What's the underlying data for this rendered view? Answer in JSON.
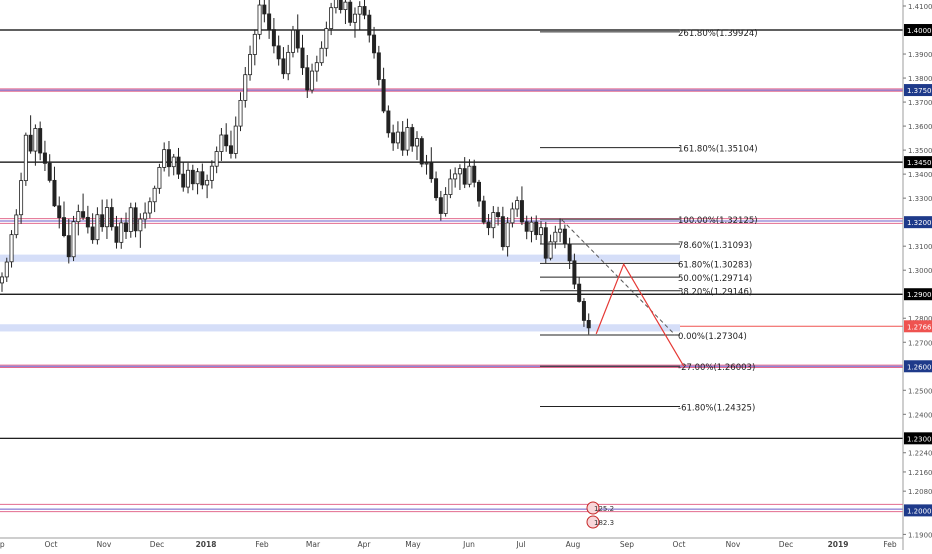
{
  "chart_data": {
    "type": "candlestick",
    "instrument_hint": "GBPUSD",
    "y_axis": {
      "min": 1.1885,
      "max": 1.4125,
      "tick_labels": [
        "1.41000",
        "1.39000",
        "1.38000",
        "1.37000",
        "1.36000",
        "1.35000",
        "1.34000",
        "1.33000",
        "1.31000",
        "1.30000",
        "1.28000",
        "1.27000",
        "1.25000",
        "1.24000",
        "1.22400",
        "1.21600",
        "1.20800",
        "1.19000"
      ],
      "tick_values": [
        1.41,
        1.39,
        1.38,
        1.37,
        1.36,
        1.35,
        1.34,
        1.33,
        1.31,
        1.3,
        1.28,
        1.27,
        1.25,
        1.24,
        1.224,
        1.216,
        1.208,
        1.19
      ]
    },
    "x_axis": {
      "labels": [
        "ep",
        "Oct",
        "Nov",
        "Dec",
        "2018",
        "Feb",
        "Mar",
        "Apr",
        "May",
        "Jun",
        "Jul",
        "Aug",
        "Sep",
        "Oct",
        "Nov",
        "Dec",
        "2019",
        "Feb"
      ],
      "bold": [
        "2018",
        "2019"
      ]
    },
    "level_labels": [
      {
        "value": 1.4,
        "text": "1.40000"
      },
      {
        "value": 1.375,
        "text": "1.37500"
      },
      {
        "value": 1.345,
        "text": "1.34500"
      },
      {
        "value": 1.32,
        "text": "1.32000"
      },
      {
        "value": 1.29,
        "text": "1.29000"
      },
      {
        "value": 1.27665,
        "text": "1.27665"
      },
      {
        "value": 1.26,
        "text": "1.26000"
      },
      {
        "value": 1.23,
        "text": "1.23000"
      },
      {
        "value": 1.2,
        "text": "1.20000"
      }
    ],
    "fib_levels": [
      {
        "label": "261.80%(1.39924)",
        "value": 1.39924
      },
      {
        "label": "161.80%(1.35104)",
        "value": 1.35104
      },
      {
        "label": "100.00%(1.32125)",
        "value": 1.32125
      },
      {
        "label": "78.60%(1.31093)",
        "value": 1.31093
      },
      {
        "label": "61.80%(1.30283)",
        "value": 1.30283
      },
      {
        "label": "50.00%(1.29714)",
        "value": 1.29714
      },
      {
        "label": "38.20%(1.29146)",
        "value": 1.29146
      },
      {
        "label": "0.00%(1.27304)",
        "value": 1.27304
      },
      {
        "label": "-27.00%(1.26003)",
        "value": 1.26003
      },
      {
        "label": "-61.80%(1.24325)",
        "value": 1.24325
      }
    ],
    "horizontal_levels": [
      1.4,
      1.345,
      1.29,
      1.23
    ],
    "pink_lines": [
      1.3755,
      1.3745,
      1.3215,
      1.3195,
      1.2605,
      1.2595,
      1.2025,
      1.1995
    ],
    "zones": [
      {
        "low": 1.3035,
        "high": 1.3065
      },
      {
        "low": 1.2745,
        "high": 1.2775
      }
    ],
    "projection_path": [
      {
        "date": "2018-08-14",
        "price": 1.2735
      },
      {
        "date": "2018-08-30",
        "price": 1.3025
      },
      {
        "date": "2018-10-04",
        "price": 1.26
      }
    ],
    "trend_line": [
      {
        "date": "2018-07-25",
        "price": 1.321
      },
      {
        "date": "2018-09-29",
        "price": 1.273
      }
    ],
    "event_markers": [
      "125.2",
      "182.3"
    ],
    "candles": [
      {
        "t": 0,
        "o": 1.2947,
        "h": 1.2991,
        "l": 1.291,
        "c": 1.2972
      },
      {
        "t": 1,
        "o": 1.2972,
        "h": 1.3052,
        "l": 1.2951,
        "c": 1.3034
      },
      {
        "t": 2,
        "o": 1.3035,
        "h": 1.3167,
        "l": 1.3011,
        "c": 1.3148
      },
      {
        "t": 3,
        "o": 1.3148,
        "h": 1.3254,
        "l": 1.3133,
        "c": 1.323
      },
      {
        "t": 4,
        "o": 1.3231,
        "h": 1.3406,
        "l": 1.3193,
        "c": 1.3373
      },
      {
        "t": 5,
        "o": 1.3373,
        "h": 1.3573,
        "l": 1.3351,
        "c": 1.3562
      },
      {
        "t": 6,
        "o": 1.3562,
        "h": 1.3645,
        "l": 1.3485,
        "c": 1.3496
      },
      {
        "t": 7,
        "o": 1.3496,
        "h": 1.3607,
        "l": 1.3435,
        "c": 1.359
      },
      {
        "t": 8,
        "o": 1.359,
        "h": 1.3619,
        "l": 1.3458,
        "c": 1.3488
      },
      {
        "t": 9,
        "o": 1.3488,
        "h": 1.3539,
        "l": 1.3413,
        "c": 1.3445
      },
      {
        "t": 10,
        "o": 1.3445,
        "h": 1.3483,
        "l": 1.3365,
        "c": 1.3374
      },
      {
        "t": 11,
        "o": 1.3374,
        "h": 1.3431,
        "l": 1.3263,
        "c": 1.3268
      },
      {
        "t": 12,
        "o": 1.3268,
        "h": 1.3307,
        "l": 1.3174,
        "c": 1.3219
      },
      {
        "t": 13,
        "o": 1.3219,
        "h": 1.3286,
        "l": 1.3137,
        "c": 1.3144
      },
      {
        "t": 14,
        "o": 1.3144,
        "h": 1.3214,
        "l": 1.3028,
        "c": 1.3056
      },
      {
        "t": 15,
        "o": 1.3056,
        "h": 1.3226,
        "l": 1.3038,
        "c": 1.3202
      },
      {
        "t": 16,
        "o": 1.3202,
        "h": 1.3273,
        "l": 1.3145,
        "c": 1.3244
      },
      {
        "t": 17,
        "o": 1.3244,
        "h": 1.3319,
        "l": 1.3209,
        "c": 1.322
      },
      {
        "t": 18,
        "o": 1.322,
        "h": 1.3268,
        "l": 1.3153,
        "c": 1.318
      },
      {
        "t": 19,
        "o": 1.318,
        "h": 1.3237,
        "l": 1.311,
        "c": 1.3127
      },
      {
        "t": 20,
        "o": 1.3127,
        "h": 1.3262,
        "l": 1.3107,
        "c": 1.3231
      },
      {
        "t": 21,
        "o": 1.3231,
        "h": 1.3294,
        "l": 1.316,
        "c": 1.3181
      },
      {
        "t": 22,
        "o": 1.3181,
        "h": 1.3295,
        "l": 1.313,
        "c": 1.3261
      },
      {
        "t": 23,
        "o": 1.3261,
        "h": 1.3298,
        "l": 1.3165,
        "c": 1.3181
      },
      {
        "t": 24,
        "o": 1.3181,
        "h": 1.3226,
        "l": 1.309,
        "c": 1.3116
      },
      {
        "t": 25,
        "o": 1.3116,
        "h": 1.3218,
        "l": 1.3089,
        "c": 1.3197
      },
      {
        "t": 26,
        "o": 1.3197,
        "h": 1.324,
        "l": 1.313,
        "c": 1.3161
      },
      {
        "t": 27,
        "o": 1.3161,
        "h": 1.3281,
        "l": 1.3135,
        "c": 1.326
      },
      {
        "t": 28,
        "o": 1.326,
        "h": 1.3282,
        "l": 1.3137,
        "c": 1.3164
      },
      {
        "t": 29,
        "o": 1.3164,
        "h": 1.3237,
        "l": 1.3093,
        "c": 1.3213
      },
      {
        "t": 30,
        "o": 1.3213,
        "h": 1.3282,
        "l": 1.3174,
        "c": 1.3238
      },
      {
        "t": 31,
        "o": 1.3238,
        "h": 1.3303,
        "l": 1.3216,
        "c": 1.3285
      },
      {
        "t": 32,
        "o": 1.3285,
        "h": 1.3352,
        "l": 1.3242,
        "c": 1.3341
      },
      {
        "t": 33,
        "o": 1.3341,
        "h": 1.3443,
        "l": 1.3318,
        "c": 1.3428
      },
      {
        "t": 34,
        "o": 1.3428,
        "h": 1.3532,
        "l": 1.3411,
        "c": 1.3502
      },
      {
        "t": 35,
        "o": 1.3502,
        "h": 1.3538,
        "l": 1.339,
        "c": 1.3431
      },
      {
        "t": 36,
        "o": 1.3431,
        "h": 1.3484,
        "l": 1.3395,
        "c": 1.3471
      },
      {
        "t": 37,
        "o": 1.3471,
        "h": 1.3509,
        "l": 1.338,
        "c": 1.34
      },
      {
        "t": 38,
        "o": 1.34,
        "h": 1.3451,
        "l": 1.3327,
        "c": 1.3346
      },
      {
        "t": 39,
        "o": 1.3346,
        "h": 1.3446,
        "l": 1.332,
        "c": 1.3416
      },
      {
        "t": 40,
        "o": 1.3416,
        "h": 1.3439,
        "l": 1.3333,
        "c": 1.336
      },
      {
        "t": 41,
        "o": 1.336,
        "h": 1.3425,
        "l": 1.3316,
        "c": 1.341
      },
      {
        "t": 42,
        "o": 1.341,
        "h": 1.3444,
        "l": 1.3337,
        "c": 1.3355
      },
      {
        "t": 43,
        "o": 1.3355,
        "h": 1.3398,
        "l": 1.33,
        "c": 1.3374
      },
      {
        "t": 44,
        "o": 1.3374,
        "h": 1.3458,
        "l": 1.334,
        "c": 1.3433
      },
      {
        "t": 45,
        "o": 1.3433,
        "h": 1.3515,
        "l": 1.3404,
        "c": 1.3494
      },
      {
        "t": 46,
        "o": 1.3494,
        "h": 1.3592,
        "l": 1.3455,
        "c": 1.3563
      },
      {
        "t": 47,
        "o": 1.3563,
        "h": 1.3612,
        "l": 1.3493,
        "c": 1.3518
      },
      {
        "t": 48,
        "o": 1.3518,
        "h": 1.3581,
        "l": 1.3465,
        "c": 1.3486
      },
      {
        "t": 49,
        "o": 1.3486,
        "h": 1.364,
        "l": 1.3465,
        "c": 1.36
      },
      {
        "t": 50,
        "o": 1.36,
        "h": 1.3741,
        "l": 1.3579,
        "c": 1.3707
      },
      {
        "t": 51,
        "o": 1.3707,
        "h": 1.3846,
        "l": 1.3677,
        "c": 1.3814
      },
      {
        "t": 52,
        "o": 1.3814,
        "h": 1.3935,
        "l": 1.3789,
        "c": 1.3898
      },
      {
        "t": 53,
        "o": 1.3898,
        "h": 1.4003,
        "l": 1.3853,
        "c": 1.3982
      },
      {
        "t": 54,
        "o": 1.3982,
        "h": 1.4146,
        "l": 1.3961,
        "c": 1.4104
      },
      {
        "t": 55,
        "o": 1.4104,
        "h": 1.417,
        "l": 1.4032,
        "c": 1.4067
      },
      {
        "t": 56,
        "o": 1.4067,
        "h": 1.4138,
        "l": 1.3963,
        "c": 1.4002
      },
      {
        "t": 57,
        "o": 1.4002,
        "h": 1.405,
        "l": 1.3903,
        "c": 1.3934
      },
      {
        "t": 58,
        "o": 1.3934,
        "h": 1.3977,
        "l": 1.3852,
        "c": 1.388
      },
      {
        "t": 59,
        "o": 1.388,
        "h": 1.3929,
        "l": 1.3797,
        "c": 1.3818
      },
      {
        "t": 60,
        "o": 1.3818,
        "h": 1.3938,
        "l": 1.3791,
        "c": 1.3907
      },
      {
        "t": 61,
        "o": 1.3907,
        "h": 1.4017,
        "l": 1.3886,
        "c": 1.3999
      },
      {
        "t": 62,
        "o": 1.3999,
        "h": 1.4065,
        "l": 1.3906,
        "c": 1.3925
      },
      {
        "t": 63,
        "o": 1.3925,
        "h": 1.398,
        "l": 1.3813,
        "c": 1.3843
      },
      {
        "t": 64,
        "o": 1.3843,
        "h": 1.3896,
        "l": 1.3717,
        "c": 1.375
      },
      {
        "t": 65,
        "o": 1.375,
        "h": 1.386,
        "l": 1.3736,
        "c": 1.3829
      },
      {
        "t": 66,
        "o": 1.3829,
        "h": 1.3893,
        "l": 1.3785,
        "c": 1.3864
      },
      {
        "t": 67,
        "o": 1.3864,
        "h": 1.3953,
        "l": 1.3851,
        "c": 1.3924
      },
      {
        "t": 68,
        "o": 1.3924,
        "h": 1.4035,
        "l": 1.389,
        "c": 1.4006
      },
      {
        "t": 69,
        "o": 1.4006,
        "h": 1.4113,
        "l": 1.3979,
        "c": 1.4093
      },
      {
        "t": 70,
        "o": 1.4093,
        "h": 1.4175,
        "l": 1.4069,
        "c": 1.4141
      },
      {
        "t": 71,
        "o": 1.4141,
        "h": 1.4188,
        "l": 1.4069,
        "c": 1.4085
      },
      {
        "t": 72,
        "o": 1.4085,
        "h": 1.4148,
        "l": 1.4025,
        "c": 1.4116
      },
      {
        "t": 73,
        "o": 1.4116,
        "h": 1.4179,
        "l": 1.4017,
        "c": 1.4032
      },
      {
        "t": 74,
        "o": 1.4032,
        "h": 1.4094,
        "l": 1.3968,
        "c": 1.4066
      },
      {
        "t": 75,
        "o": 1.4066,
        "h": 1.412,
        "l": 1.4001,
        "c": 1.4098
      },
      {
        "t": 76,
        "o": 1.4098,
        "h": 1.4159,
        "l": 1.4045,
        "c": 1.4062
      },
      {
        "t": 77,
        "o": 1.4062,
        "h": 1.4084,
        "l": 1.3948,
        "c": 1.3979
      },
      {
        "t": 78,
        "o": 1.3979,
        "h": 1.4013,
        "l": 1.3881,
        "c": 1.3905
      },
      {
        "t": 79,
        "o": 1.3905,
        "h": 1.3934,
        "l": 1.3769,
        "c": 1.3794
      },
      {
        "t": 80,
        "o": 1.3794,
        "h": 1.3843,
        "l": 1.3654,
        "c": 1.3663
      },
      {
        "t": 81,
        "o": 1.3663,
        "h": 1.3686,
        "l": 1.3552,
        "c": 1.3572
      },
      {
        "t": 82,
        "o": 1.3572,
        "h": 1.3606,
        "l": 1.3497,
        "c": 1.353
      },
      {
        "t": 83,
        "o": 1.353,
        "h": 1.362,
        "l": 1.3505,
        "c": 1.3575
      },
      {
        "t": 84,
        "o": 1.3575,
        "h": 1.3621,
        "l": 1.3476,
        "c": 1.35
      },
      {
        "t": 85,
        "o": 1.35,
        "h": 1.3631,
        "l": 1.3477,
        "c": 1.3594
      },
      {
        "t": 86,
        "o": 1.3594,
        "h": 1.3609,
        "l": 1.3493,
        "c": 1.3517
      },
      {
        "t": 87,
        "o": 1.3517,
        "h": 1.3579,
        "l": 1.3459,
        "c": 1.3548
      },
      {
        "t": 88,
        "o": 1.3548,
        "h": 1.3558,
        "l": 1.3429,
        "c": 1.3442
      },
      {
        "t": 89,
        "o": 1.3442,
        "h": 1.348,
        "l": 1.3398,
        "c": 1.3446
      },
      {
        "t": 90,
        "o": 1.3446,
        "h": 1.3512,
        "l": 1.3364,
        "c": 1.3381
      },
      {
        "t": 91,
        "o": 1.3381,
        "h": 1.3411,
        "l": 1.3289,
        "c": 1.3302
      },
      {
        "t": 92,
        "o": 1.3302,
        "h": 1.333,
        "l": 1.3207,
        "c": 1.3236
      },
      {
        "t": 93,
        "o": 1.3236,
        "h": 1.3346,
        "l": 1.3223,
        "c": 1.3315
      },
      {
        "t": 94,
        "o": 1.3315,
        "h": 1.342,
        "l": 1.33,
        "c": 1.338
      },
      {
        "t": 95,
        "o": 1.338,
        "h": 1.3428,
        "l": 1.3344,
        "c": 1.3401
      },
      {
        "t": 96,
        "o": 1.3401,
        "h": 1.3441,
        "l": 1.3334,
        "c": 1.3423
      },
      {
        "t": 97,
        "o": 1.3423,
        "h": 1.3471,
        "l": 1.3342,
        "c": 1.3358
      },
      {
        "t": 98,
        "o": 1.3358,
        "h": 1.3462,
        "l": 1.3345,
        "c": 1.3433
      },
      {
        "t": 99,
        "o": 1.3433,
        "h": 1.346,
        "l": 1.3345,
        "c": 1.3366
      },
      {
        "t": 100,
        "o": 1.3366,
        "h": 1.3376,
        "l": 1.3264,
        "c": 1.3288
      },
      {
        "t": 101,
        "o": 1.3288,
        "h": 1.331,
        "l": 1.3191,
        "c": 1.32
      },
      {
        "t": 102,
        "o": 1.32,
        "h": 1.3234,
        "l": 1.3146,
        "c": 1.3177
      },
      {
        "t": 103,
        "o": 1.3177,
        "h": 1.3267,
        "l": 1.3133,
        "c": 1.324
      },
      {
        "t": 104,
        "o": 1.324,
        "h": 1.3264,
        "l": 1.3186,
        "c": 1.3223
      },
      {
        "t": 105,
        "o": 1.3223,
        "h": 1.3264,
        "l": 1.3082,
        "c": 1.3098
      },
      {
        "t": 106,
        "o": 1.3098,
        "h": 1.3221,
        "l": 1.3057,
        "c": 1.3197
      },
      {
        "t": 107,
        "o": 1.3197,
        "h": 1.3282,
        "l": 1.3178,
        "c": 1.3255
      },
      {
        "t": 108,
        "o": 1.3255,
        "h": 1.3307,
        "l": 1.3222,
        "c": 1.329
      },
      {
        "t": 109,
        "o": 1.329,
        "h": 1.3349,
        "l": 1.3188,
        "c": 1.3201
      },
      {
        "t": 110,
        "o": 1.3201,
        "h": 1.3227,
        "l": 1.3129,
        "c": 1.3162
      },
      {
        "t": 111,
        "o": 1.3162,
        "h": 1.3223,
        "l": 1.3116,
        "c": 1.32
      },
      {
        "t": 112,
        "o": 1.32,
        "h": 1.3228,
        "l": 1.3126,
        "c": 1.3148
      },
      {
        "t": 113,
        "o": 1.3148,
        "h": 1.3204,
        "l": 1.311,
        "c": 1.3177
      },
      {
        "t": 114,
        "o": 1.3177,
        "h": 1.3201,
        "l": 1.303,
        "c": 1.305
      },
      {
        "t": 115,
        "o": 1.305,
        "h": 1.3148,
        "l": 1.3041,
        "c": 1.3118
      },
      {
        "t": 116,
        "o": 1.3118,
        "h": 1.3185,
        "l": 1.309,
        "c": 1.3158
      },
      {
        "t": 117,
        "o": 1.3158,
        "h": 1.3216,
        "l": 1.3117,
        "c": 1.3171
      },
      {
        "t": 118,
        "o": 1.3171,
        "h": 1.319,
        "l": 1.3092,
        "c": 1.3109
      },
      {
        "t": 119,
        "o": 1.3109,
        "h": 1.3135,
        "l": 1.3005,
        "c": 1.3039
      },
      {
        "t": 120,
        "o": 1.3039,
        "h": 1.3069,
        "l": 1.2922,
        "c": 1.2942
      },
      {
        "t": 121,
        "o": 1.2942,
        "h": 1.297,
        "l": 1.2865,
        "c": 1.287
      },
      {
        "t": 122,
        "o": 1.287,
        "h": 1.2884,
        "l": 1.2764,
        "c": 1.2791
      },
      {
        "t": 123,
        "o": 1.2791,
        "h": 1.282,
        "l": 1.2733,
        "c": 1.276
      }
    ]
  }
}
